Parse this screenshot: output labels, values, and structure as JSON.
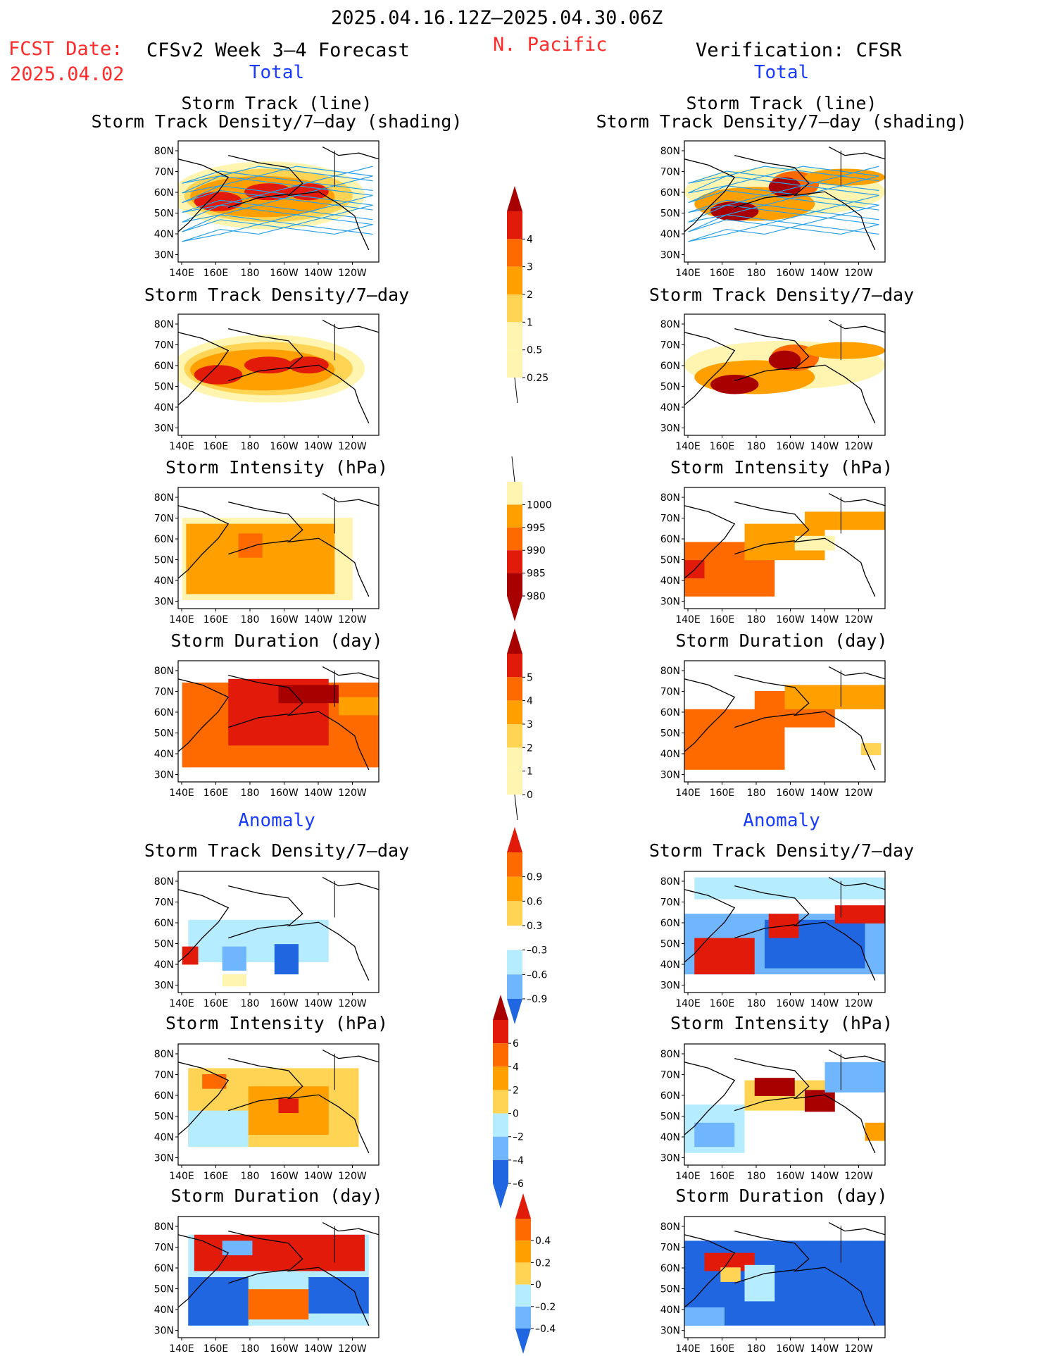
{
  "header": {
    "date_range": "2025.04.16.12Z–2025.04.30.06Z",
    "region": "N. Pacific",
    "fcst_label": "FCST Date:",
    "fcst_date": "2025.04.02",
    "forecast_title": "CFSv2 Week 3–4 Forecast",
    "verification_title": "Verification: CFSR"
  },
  "sections": {
    "total": "Total",
    "anomaly": "Anomaly"
  },
  "panel_titles": {
    "storm_track_line": "Storm Track (line)",
    "storm_track_shading": "Storm Track Density/7–day (shading)",
    "density": "Storm Track Density/7–day",
    "intensity": "Storm Intensity (hPa)",
    "duration": "Storm Duration (day)"
  },
  "map_axes": {
    "lat_labels": [
      "80N",
      "70N",
      "60N",
      "50N",
      "40N",
      "30N"
    ],
    "lon_labels": [
      "140E",
      "160E",
      "180",
      "160W",
      "140W",
      "120W"
    ]
  },
  "colorbars": {
    "density": {
      "levels": [
        "4",
        "3",
        "2",
        "1",
        "0.5",
        "0.25"
      ]
    },
    "intensity": {
      "levels": [
        "1000",
        "995",
        "990",
        "985",
        "980"
      ]
    },
    "duration": {
      "levels": [
        "5",
        "4",
        "3",
        "2",
        "1",
        "0"
      ]
    },
    "density_anom": {
      "levels": [
        "0.9",
        "0.6",
        "0.3",
        "–0.3",
        "–0.6",
        "–0.9"
      ]
    },
    "intensity_anom": {
      "levels": [
        "6",
        "4",
        "2",
        "0",
        "–2",
        "–4",
        "–6"
      ]
    },
    "duration_anom": {
      "levels": [
        "0.4",
        "0.2",
        "0",
        "–0.2",
        "–0.4"
      ]
    }
  },
  "colors": {
    "lightyellow": "#fff5b0",
    "yellow": "#ffd455",
    "orange": "#ffa000",
    "darkorange": "#ff6a00",
    "red": "#e21a0a",
    "darkred": "#a80000",
    "lightblue": "#b6ecff",
    "midblue": "#6fb6ff",
    "blue": "#1f66e0",
    "track": "#2aa0e6"
  }
}
